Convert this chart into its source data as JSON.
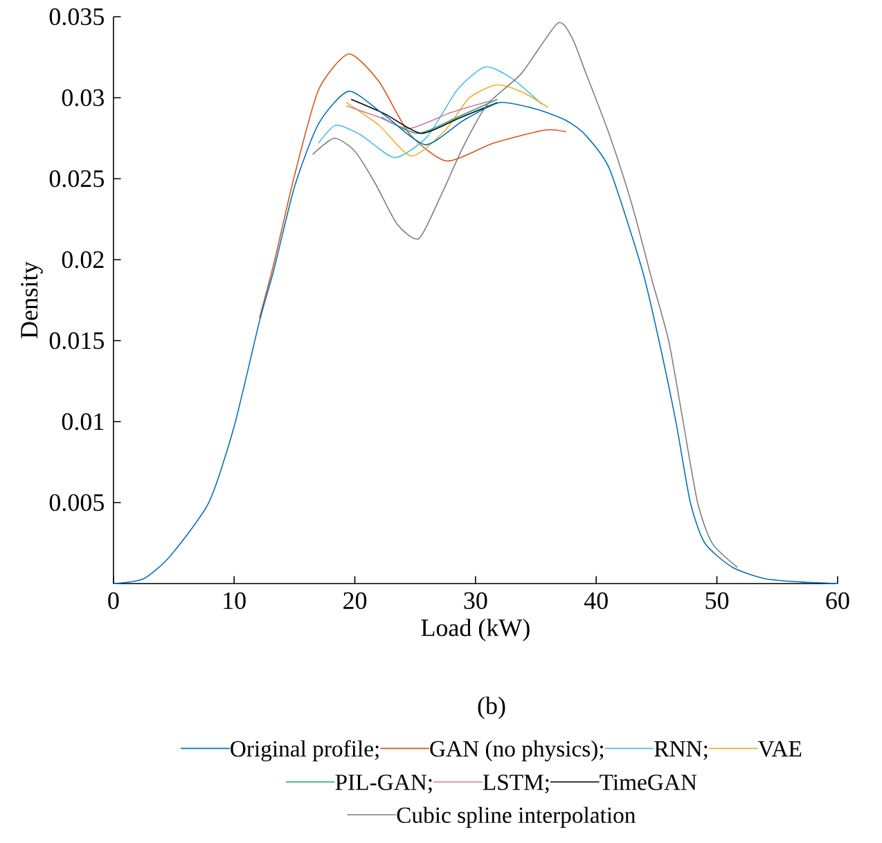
{
  "chart_data": {
    "type": "line",
    "xlabel": "Load (kW)",
    "ylabel": "Density",
    "annotations": [
      "(b)"
    ],
    "xlim": [
      0,
      60
    ],
    "ylim": [
      0,
      0.035
    ],
    "xticks": [
      0,
      10,
      20,
      30,
      40,
      50,
      60
    ],
    "yticks": [
      0.005,
      0.01,
      0.015,
      0.02,
      0.025,
      0.03,
      0.035
    ],
    "legend": "bottom",
    "grid": false,
    "marker": "none",
    "line_style": "solid",
    "series": [
      {
        "name": "Original profile;",
        "color": "#0072bd",
        "x": [
          0,
          2.5,
          4.7,
          7.9,
          10,
          12.1,
          13.3,
          15,
          17,
          19.5,
          22.5,
          25.85,
          29,
          32,
          35,
          37.5,
          39.1,
          41.1,
          43.8,
          45.2,
          46.6,
          47.8,
          49,
          51.3,
          54,
          57,
          60
        ],
        "values": [
          0,
          0.0003,
          0.0017,
          0.005,
          0.0097,
          0.0162,
          0.0194,
          0.0245,
          0.0284,
          0.0304,
          0.0289,
          0.0271,
          0.0286,
          0.0297,
          0.0293,
          0.0286,
          0.0277,
          0.0256,
          0.0194,
          0.015,
          0.01,
          0.005,
          0.0025,
          0.001,
          0.0003,
          0.0001,
          0
        ]
      },
      {
        "name": "GAN (no physics);",
        "color": "#d95319",
        "x": [
          12.1,
          13.3,
          15,
          17,
          19.5,
          22,
          24.5,
          27.6,
          31.5,
          35.7,
          37.5
        ],
        "values": [
          0.0164,
          0.0198,
          0.0252,
          0.0305,
          0.0327,
          0.031,
          0.0278,
          0.0261,
          0.0272,
          0.028,
          0.0279
        ]
      },
      {
        "name": "RNN;",
        "color": "#4dbeee",
        "x": [
          17,
          18.4,
          20.5,
          23.3,
          26,
          28.5,
          30.8,
          33,
          35.5
        ],
        "values": [
          0.0272,
          0.0283,
          0.0277,
          0.0263,
          0.0276,
          0.0305,
          0.0319,
          0.0312,
          0.0296
        ]
      },
      {
        "name": "VAE",
        "color": "#edb120",
        "x": [
          19.3,
          22,
          24.7,
          27.5,
          29.5,
          31.8,
          34,
          36
        ],
        "values": [
          0.0297,
          0.0283,
          0.0264,
          0.028,
          0.03,
          0.0308,
          0.0303,
          0.0294
        ]
      },
      {
        "name": "PIL-GAN;",
        "color": "#23a07a",
        "x": [
          22.2,
          25.2,
          28.5,
          31.8
        ],
        "values": [
          0.0288,
          0.0278,
          0.0288,
          0.0299
        ]
      },
      {
        "name": "LSTM;",
        "color": "#cc79a7",
        "x": [
          19.3,
          22,
          24.5,
          28,
          31.2
        ],
        "values": [
          0.0295,
          0.0288,
          0.0281,
          0.0291,
          0.0298
        ]
      },
      {
        "name": "TimeGAN",
        "color": "#000000",
        "x": [
          19.7,
          22.5,
          25.5,
          28.5,
          31.8
        ],
        "values": [
          0.0299,
          0.029,
          0.0278,
          0.0287,
          0.0297
        ]
      },
      {
        "name": "Cubic spline interpolation",
        "color": "#7f7f7f",
        "x": [
          16.5,
          18.3,
          20,
          21.7,
          23.5,
          25.3,
          27.1,
          29,
          31,
          33.8,
          36.8,
          38,
          39.1,
          41.1,
          43,
          44.6,
          46,
          47.2,
          48.4,
          49.6,
          51.7
        ],
        "values": [
          0.0265,
          0.0275,
          0.0267,
          0.0247,
          0.0222,
          0.0213,
          0.0239,
          0.027,
          0.0296,
          0.0315,
          0.0346,
          0.0337,
          0.0316,
          0.0277,
          0.0233,
          0.0188,
          0.015,
          0.01,
          0.005,
          0.0025,
          0.001
        ]
      }
    ]
  }
}
